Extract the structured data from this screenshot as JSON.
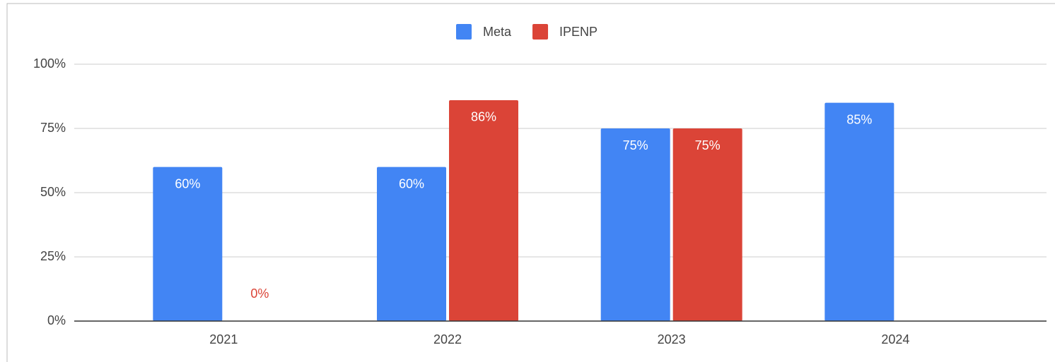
{
  "chart_data": {
    "type": "bar",
    "categories": [
      "2021",
      "2022",
      "2023",
      "2024"
    ],
    "series": [
      {
        "name": "Meta",
        "color": "#4285f4",
        "values": [
          60,
          60,
          75,
          85
        ],
        "value_labels": [
          "60%",
          "60%",
          "75%",
          "85%"
        ]
      },
      {
        "name": "IPENP",
        "color": "#db4437",
        "values": [
          0,
          86,
          75,
          null
        ],
        "value_labels": [
          "0%",
          "86%",
          "75%",
          null
        ]
      }
    ],
    "ylim": [
      0,
      100
    ],
    "yticks": [
      {
        "value": 0,
        "label": "0%"
      },
      {
        "value": 25,
        "label": "25%"
      },
      {
        "value": 50,
        "label": "50%"
      },
      {
        "value": 75,
        "label": "75%"
      },
      {
        "value": 100,
        "label": "100%"
      }
    ],
    "grid": true,
    "legend": "top"
  }
}
